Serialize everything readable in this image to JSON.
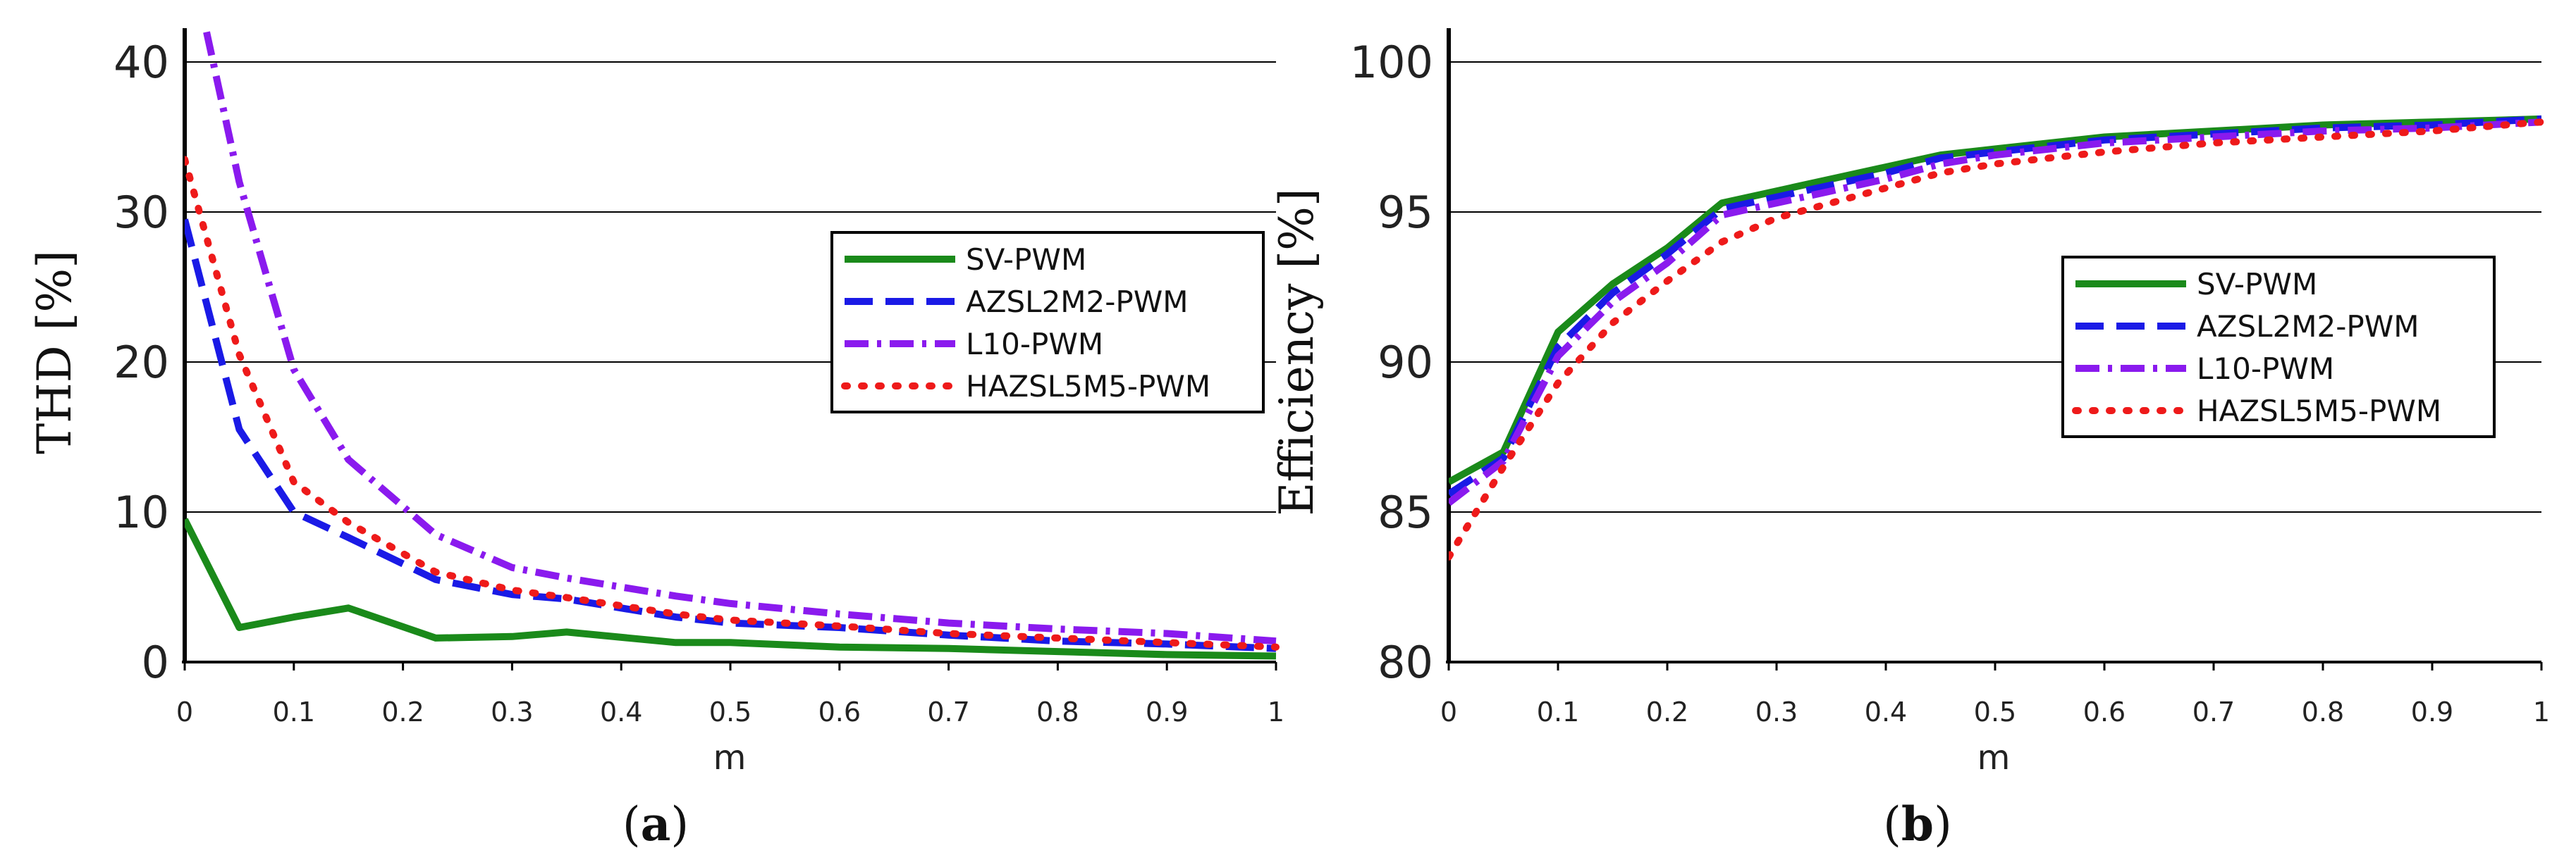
{
  "chart_data": [
    {
      "type": "line",
      "caption_letter": "a",
      "xlabel": "m",
      "ylabel": "THD [%]",
      "xlim": [
        0,
        1
      ],
      "ylim": [
        0,
        40
      ],
      "xticks": [
        "0",
        "0.1",
        "0.2",
        "0.3",
        "0.4",
        "0.5",
        "0.6",
        "0.7",
        "0.8",
        "0.9",
        "1"
      ],
      "yticks": [
        "0",
        "10",
        "20",
        "30",
        "40"
      ],
      "grid": "horizontal",
      "legend_position": "center-right",
      "series": [
        {
          "name": "SV-PWM",
          "color": "#1a8a1a",
          "dash": "solid",
          "x": [
            0,
            0.05,
            0.1,
            0.15,
            0.23,
            0.3,
            0.35,
            0.45,
            0.5,
            0.6,
            0.7,
            0.8,
            0.9,
            1
          ],
          "y": [
            9.5,
            2.3,
            3.0,
            3.6,
            1.6,
            1.7,
            2.0,
            1.3,
            1.3,
            1.0,
            0.9,
            0.7,
            0.5,
            0.4
          ]
        },
        {
          "name": "AZSL2M2-PWM",
          "color": "#1a1ae6",
          "dash": "dashed",
          "x": [
            0,
            0.05,
            0.1,
            0.15,
            0.23,
            0.3,
            0.35,
            0.45,
            0.5,
            0.6,
            0.7,
            0.8,
            0.9,
            1
          ],
          "y": [
            29.5,
            15.5,
            10.0,
            8.3,
            5.5,
            4.5,
            4.2,
            3.0,
            2.6,
            2.3,
            1.8,
            1.4,
            1.2,
            0.9
          ]
        },
        {
          "name": "L10-PWM",
          "color": "#8a1aee",
          "dash": "dashdot",
          "x": [
            0.02,
            0.05,
            0.1,
            0.15,
            0.23,
            0.3,
            0.35,
            0.45,
            0.5,
            0.6,
            0.7,
            0.8,
            0.9,
            1
          ],
          "y": [
            42,
            32,
            19.5,
            13.5,
            8.5,
            6.3,
            5.6,
            4.4,
            3.9,
            3.2,
            2.6,
            2.2,
            1.9,
            1.4
          ]
        },
        {
          "name": "HAZSL5M5-PWM",
          "color": "#ee1a1a",
          "dash": "dotted",
          "x": [
            0,
            0.05,
            0.1,
            0.15,
            0.23,
            0.3,
            0.35,
            0.45,
            0.5,
            0.6,
            0.7,
            0.8,
            0.9,
            1
          ],
          "y": [
            33.5,
            20.5,
            12.0,
            9.3,
            6.0,
            4.8,
            4.3,
            3.2,
            2.8,
            2.4,
            1.9,
            1.6,
            1.3,
            1.0
          ]
        }
      ]
    },
    {
      "type": "line",
      "caption_letter": "b",
      "xlabel": "m",
      "ylabel": "Efficiency [%]",
      "xlim": [
        0,
        1
      ],
      "ylim": [
        80,
        100
      ],
      "xticks": [
        "0",
        "0.1",
        "0.2",
        "0.3",
        "0.4",
        "0.5",
        "0.6",
        "0.7",
        "0.8",
        "0.9",
        "1"
      ],
      "yticks": [
        "80",
        "85",
        "90",
        "95",
        "100"
      ],
      "grid": "horizontal",
      "legend_position": "center-right",
      "series": [
        {
          "name": "SV-PWM",
          "color": "#1a8a1a",
          "dash": "solid",
          "x": [
            0,
            0.05,
            0.1,
            0.15,
            0.2,
            0.25,
            0.3,
            0.35,
            0.4,
            0.45,
            0.5,
            0.6,
            0.7,
            0.8,
            0.9,
            1
          ],
          "y": [
            86.0,
            87.0,
            91.0,
            92.6,
            93.8,
            95.3,
            95.7,
            96.1,
            96.5,
            96.9,
            97.1,
            97.5,
            97.7,
            97.9,
            98.0,
            98.1
          ]
        },
        {
          "name": "AZSL2M2-PWM",
          "color": "#1a1ae6",
          "dash": "dashed",
          "x": [
            0,
            0.05,
            0.1,
            0.15,
            0.2,
            0.25,
            0.3,
            0.35,
            0.4,
            0.45,
            0.5,
            0.6,
            0.7,
            0.8,
            0.9,
            1
          ],
          "y": [
            85.6,
            86.8,
            90.5,
            92.3,
            93.6,
            95.1,
            95.5,
            95.9,
            96.3,
            96.8,
            97.0,
            97.4,
            97.6,
            97.8,
            97.9,
            98.1
          ]
        },
        {
          "name": "L10-PWM",
          "color": "#8a1aee",
          "dash": "dashdot",
          "x": [
            0,
            0.05,
            0.1,
            0.15,
            0.2,
            0.25,
            0.3,
            0.35,
            0.4,
            0.45,
            0.5,
            0.6,
            0.7,
            0.8,
            0.9,
            1
          ],
          "y": [
            85.3,
            86.7,
            90.2,
            92.0,
            93.3,
            94.9,
            95.3,
            95.7,
            96.1,
            96.6,
            96.9,
            97.3,
            97.5,
            97.7,
            97.8,
            98.0
          ]
        },
        {
          "name": "HAZSL5M5-PWM",
          "color": "#ee1a1a",
          "dash": "dotted",
          "x": [
            0,
            0.05,
            0.1,
            0.15,
            0.2,
            0.25,
            0.3,
            0.35,
            0.4,
            0.45,
            0.5,
            0.6,
            0.7,
            0.8,
            0.9,
            1
          ],
          "y": [
            83.5,
            86.5,
            89.3,
            91.3,
            92.7,
            94.0,
            94.8,
            95.3,
            95.8,
            96.3,
            96.6,
            97.0,
            97.3,
            97.5,
            97.7,
            98.0
          ]
        }
      ]
    }
  ]
}
